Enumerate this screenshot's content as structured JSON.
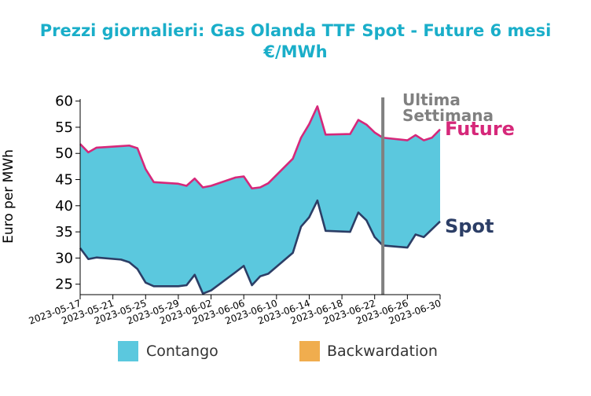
{
  "chart_data": {
    "type": "area",
    "title": "Prezzi giornalieri: Gas Olanda TTF Spot - Future 6 mesi",
    "subtitle": "€/MWh",
    "ylabel": "Euro per MWh",
    "xlabel": "",
    "ylim": [
      23,
      61
    ],
    "yticks": [
      25,
      30,
      35,
      40,
      45,
      50,
      55,
      60
    ],
    "x_start": "2023-05-17",
    "x_end": "2023-06-30",
    "xticks": [
      "2023-05-17",
      "2023-05-21",
      "2023-05-25",
      "2023-05-29",
      "2023-06-02",
      "2023-06-06",
      "2023-06-10",
      "2023-06-14",
      "2023-06-18",
      "2023-06-22",
      "2023-06-26",
      "2023-06-30"
    ],
    "dates": [
      "2023-05-17",
      "2023-05-18",
      "2023-05-19",
      "2023-05-22",
      "2023-05-23",
      "2023-05-24",
      "2023-05-25",
      "2023-05-26",
      "2023-05-29",
      "2023-05-30",
      "2023-05-31",
      "2023-06-01",
      "2023-06-02",
      "2023-06-05",
      "2023-06-06",
      "2023-06-07",
      "2023-06-08",
      "2023-06-09",
      "2023-06-12",
      "2023-06-13",
      "2023-06-14",
      "2023-06-15",
      "2023-06-16",
      "2023-06-19",
      "2023-06-20",
      "2023-06-21",
      "2023-06-22",
      "2023-06-23",
      "2023-06-26",
      "2023-06-27",
      "2023-06-28",
      "2023-06-29",
      "2023-06-30"
    ],
    "series": [
      {
        "name": "Future",
        "color": "#d6287a",
        "values": [
          51.8,
          50.2,
          51.1,
          51.4,
          51.5,
          51.0,
          47.0,
          44.5,
          44.2,
          43.8,
          45.2,
          43.5,
          43.8,
          45.4,
          45.6,
          43.3,
          43.5,
          44.3,
          49.0,
          53.0,
          55.6,
          59.0,
          53.6,
          53.7,
          56.4,
          55.5,
          54.0,
          53.0,
          52.5,
          53.5,
          52.5,
          53.0,
          54.6
        ]
      },
      {
        "name": "Spot",
        "color": "#2c3e66",
        "values": [
          31.9,
          29.8,
          30.1,
          29.7,
          29.2,
          27.9,
          25.3,
          24.6,
          24.6,
          24.8,
          26.8,
          23.2,
          23.8,
          27.3,
          28.5,
          24.8,
          26.5,
          27.0,
          31.0,
          36.0,
          37.8,
          41.0,
          35.2,
          35.0,
          38.7,
          37.2,
          34.0,
          32.4,
          32.0,
          34.5,
          34.0,
          35.5,
          37.0
        ]
      }
    ],
    "fill_colors": {
      "contango": "#5bc8de",
      "backwardation": "#f0ad4e"
    },
    "annotations": {
      "vline_date": "2023-06-23",
      "vline_color": "#808080",
      "line1": "Ultima",
      "line2": "Settimana"
    },
    "legend": {
      "placement": "bottom",
      "items": [
        {
          "label": "Contango",
          "color": "#5bc8de"
        },
        {
          "label": "Backwardation",
          "color": "#f0ad4e"
        }
      ]
    },
    "grid": false
  }
}
